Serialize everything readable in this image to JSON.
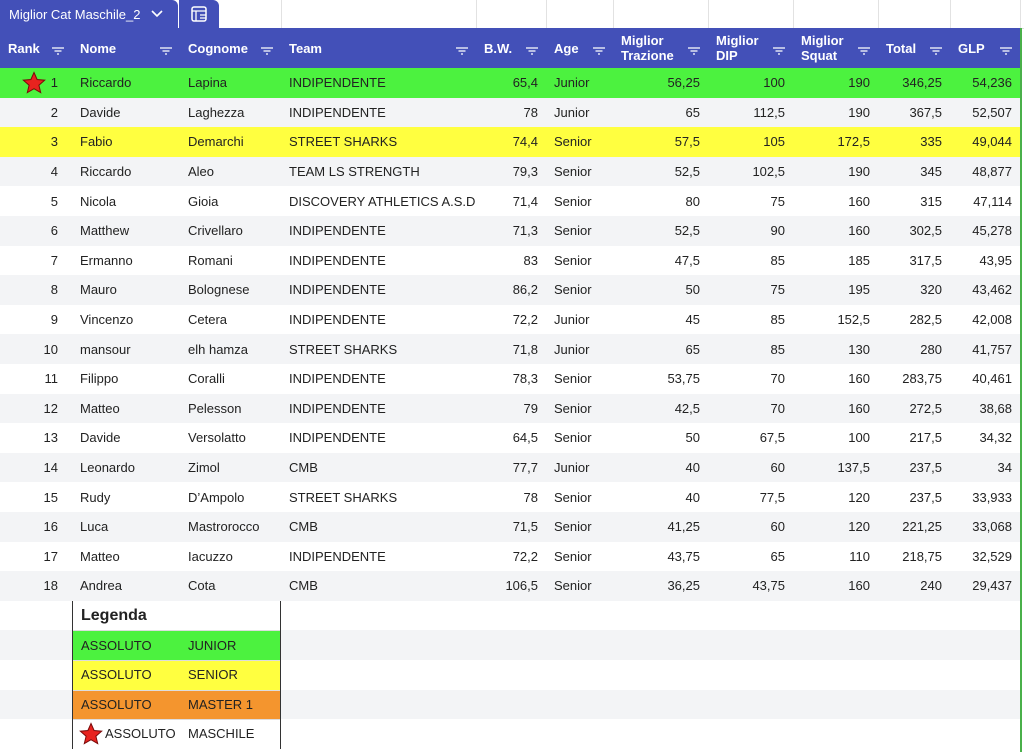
{
  "tab": {
    "title": "Miglior Cat Maschile_2"
  },
  "table": {
    "headers": [
      "Rank",
      "Nome",
      "Cognome",
      "Team",
      "B.W.",
      "Age",
      "Miglior Trazione",
      "Miglior DIP",
      "Miglior Squat",
      "Total",
      "GLP"
    ],
    "rows": [
      [
        "1",
        "Riccardo",
        "Lapina",
        "INDIPENDENTE",
        "65,4",
        "Junior",
        "56,25",
        "100",
        "190",
        "346,25",
        "54,236"
      ],
      [
        "2",
        "Davide",
        "Laghezza",
        "INDIPENDENTE",
        "78",
        "Junior",
        "65",
        "112,5",
        "190",
        "367,5",
        "52,507"
      ],
      [
        "3",
        "Fabio",
        "Demarchi",
        "STREET SHARKS",
        "74,4",
        "Senior",
        "57,5",
        "105",
        "172,5",
        "335",
        "49,044"
      ],
      [
        "4",
        "Riccardo",
        "Aleo",
        "TEAM LS STRENGTH",
        "79,3",
        "Senior",
        "52,5",
        "102,5",
        "190",
        "345",
        "48,877"
      ],
      [
        "5",
        "Nicola",
        "Gioia",
        "DISCOVERY ATHLETICS A.S.D.",
        "71,4",
        "Senior",
        "80",
        "75",
        "160",
        "315",
        "47,114"
      ],
      [
        "6",
        "Matthew",
        "Crivellaro",
        "INDIPENDENTE",
        "71,3",
        "Senior",
        "52,5",
        "90",
        "160",
        "302,5",
        "45,278"
      ],
      [
        "7",
        "Ermanno",
        "Romani",
        "INDIPENDENTE",
        "83",
        "Senior",
        "47,5",
        "85",
        "185",
        "317,5",
        "43,95"
      ],
      [
        "8",
        "Mauro",
        "Bolognese",
        "INDIPENDENTE",
        "86,2",
        "Senior",
        "50",
        "75",
        "195",
        "320",
        "43,462"
      ],
      [
        "9",
        "Vincenzo",
        "Cetera",
        "INDIPENDENTE",
        "72,2",
        "Junior",
        "45",
        "85",
        "152,5",
        "282,5",
        "42,008"
      ],
      [
        "10",
        "mansour",
        "elh hamza",
        "STREET SHARKS",
        "71,8",
        "Junior",
        "65",
        "85",
        "130",
        "280",
        "41,757"
      ],
      [
        "11",
        "Filippo",
        "Coralli",
        "INDIPENDENTE",
        "78,3",
        "Senior",
        "53,75",
        "70",
        "160",
        "283,75",
        "40,461"
      ],
      [
        "12",
        "Matteo",
        "Pelesson",
        "INDIPENDENTE",
        "79",
        "Senior",
        "42,5",
        "70",
        "160",
        "272,5",
        "38,68"
      ],
      [
        "13",
        "Davide",
        "Versolatto",
        "INDIPENDENTE",
        "64,5",
        "Senior",
        "50",
        "67,5",
        "100",
        "217,5",
        "34,32"
      ],
      [
        "14",
        "Leonardo",
        "Zimol",
        "CMB",
        "77,7",
        "Junior",
        "40",
        "60",
        "137,5",
        "237,5",
        "34"
      ],
      [
        "15",
        "Rudy",
        "D’Ampolo",
        "STREET SHARKS",
        "78",
        "Senior",
        "40",
        "77,5",
        "120",
        "237,5",
        "33,933"
      ],
      [
        "16",
        "Luca",
        "Mastrorocco",
        "CMB",
        "71,5",
        "Senior",
        "41,25",
        "60",
        "120",
        "221,25",
        "33,068"
      ],
      [
        "17",
        "Matteo",
        "Iacuzzo",
        "INDIPENDENTE",
        "72,2",
        "Senior",
        "43,75",
        "65",
        "110",
        "218,75",
        "32,529"
      ],
      [
        "18",
        "Andrea",
        "Cota",
        "CMB",
        "106,5",
        "Senior",
        "36,25",
        "43,75",
        "160",
        "240",
        "29,437"
      ]
    ],
    "row_colors": [
      "#4cf23f",
      null,
      "#ffff40",
      null,
      null,
      null,
      null,
      null,
      null,
      null,
      null,
      null,
      null,
      null,
      null,
      null,
      null,
      null
    ]
  },
  "legend": {
    "title": "Legenda",
    "items": [
      {
        "label": "ASSOLUTO",
        "category": "JUNIOR",
        "color": "#4cf23f"
      },
      {
        "label": "ASSOLUTO",
        "category": "SENIOR",
        "color": "#ffff40"
      },
      {
        "label": "ASSOLUTO",
        "category": "MASTER 1",
        "color": "#f4952e"
      },
      {
        "label": "ASSOLUTO",
        "category": "MASCHILE",
        "color": "#ffffff"
      }
    ]
  }
}
